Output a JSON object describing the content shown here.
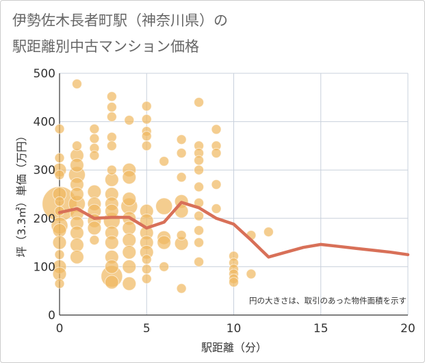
{
  "title_line1": "伊勢佐木長者町駅（神奈川県）の",
  "title_line2": "駅距離別中古マンション価格",
  "chart_data": {
    "type": "scatter",
    "title": "伊勢佐木長者町駅（神奈川県）の駅距離別中古マンション価格",
    "xlabel": "駅距離（分）",
    "ylabel": "坪（3.3㎡）単価（万円）",
    "xlim": [
      0,
      20
    ],
    "ylim": [
      0,
      500
    ],
    "xticks": [
      0,
      5,
      10,
      15,
      20
    ],
    "yticks": [
      0,
      100,
      200,
      300,
      400,
      500
    ],
    "note": "円の大きさは、取引のあった物件面積を示す",
    "bubble_color": "#f0b860",
    "line_color": "#d87058",
    "points": [
      {
        "x": 0,
        "y": 385,
        "s": 1
      },
      {
        "x": 0,
        "y": 325,
        "s": 1
      },
      {
        "x": 0,
        "y": 300,
        "s": 2
      },
      {
        "x": 0,
        "y": 290,
        "s": 1
      },
      {
        "x": 0,
        "y": 250,
        "s": 2
      },
      {
        "x": 0,
        "y": 235,
        "s": 1
      },
      {
        "x": 0,
        "y": 215,
        "s": 1
      },
      {
        "x": 0,
        "y": 185,
        "s": 3
      },
      {
        "x": 0,
        "y": 175,
        "s": 2
      },
      {
        "x": 0,
        "y": 150,
        "s": 2
      },
      {
        "x": 0,
        "y": 125,
        "s": 1
      },
      {
        "x": 0,
        "y": 100,
        "s": 2
      },
      {
        "x": 0,
        "y": 85,
        "s": 2
      },
      {
        "x": 0,
        "y": 65,
        "s": 1
      },
      {
        "x": 1,
        "y": 478,
        "s": 1
      },
      {
        "x": 1,
        "y": 350,
        "s": 1
      },
      {
        "x": 1,
        "y": 330,
        "s": 2
      },
      {
        "x": 1,
        "y": 310,
        "s": 2
      },
      {
        "x": 1,
        "y": 290,
        "s": 3
      },
      {
        "x": 1,
        "y": 270,
        "s": 2
      },
      {
        "x": 1,
        "y": 250,
        "s": 2
      },
      {
        "x": 1,
        "y": 230,
        "s": 3
      },
      {
        "x": 1,
        "y": 210,
        "s": 2
      },
      {
        "x": 1,
        "y": 190,
        "s": 2
      },
      {
        "x": 1,
        "y": 170,
        "s": 2
      },
      {
        "x": 1,
        "y": 145,
        "s": 2
      },
      {
        "x": 1,
        "y": 120,
        "s": 2
      },
      {
        "x": 0,
        "y": 230,
        "s": 13
      },
      {
        "x": 2,
        "y": 385,
        "s": 1
      },
      {
        "x": 2,
        "y": 365,
        "s": 1
      },
      {
        "x": 2,
        "y": 345,
        "s": 1
      },
      {
        "x": 2,
        "y": 330,
        "s": 1
      },
      {
        "x": 2,
        "y": 255,
        "s": 2
      },
      {
        "x": 2,
        "y": 230,
        "s": 2
      },
      {
        "x": 2,
        "y": 215,
        "s": 2
      },
      {
        "x": 2,
        "y": 195,
        "s": 2
      },
      {
        "x": 2,
        "y": 180,
        "s": 2
      },
      {
        "x": 2,
        "y": 155,
        "s": 1
      },
      {
        "x": 3,
        "y": 452,
        "s": 1
      },
      {
        "x": 3,
        "y": 430,
        "s": 1
      },
      {
        "x": 3,
        "y": 410,
        "s": 1
      },
      {
        "x": 3,
        "y": 368,
        "s": 1
      },
      {
        "x": 3,
        "y": 350,
        "s": 1
      },
      {
        "x": 3,
        "y": 300,
        "s": 1
      },
      {
        "x": 3,
        "y": 280,
        "s": 2
      },
      {
        "x": 3,
        "y": 250,
        "s": 2
      },
      {
        "x": 3,
        "y": 230,
        "s": 2
      },
      {
        "x": 3,
        "y": 215,
        "s": 2
      },
      {
        "x": 3,
        "y": 195,
        "s": 3
      },
      {
        "x": 3,
        "y": 170,
        "s": 2
      },
      {
        "x": 3,
        "y": 150,
        "s": 2
      },
      {
        "x": 3,
        "y": 120,
        "s": 2
      },
      {
        "x": 3,
        "y": 100,
        "s": 2
      },
      {
        "x": 3,
        "y": 80,
        "s": 5
      },
      {
        "x": 3,
        "y": 68,
        "s": 2
      },
      {
        "x": 4,
        "y": 403,
        "s": 1
      },
      {
        "x": 4,
        "y": 300,
        "s": 2
      },
      {
        "x": 4,
        "y": 285,
        "s": 2
      },
      {
        "x": 4,
        "y": 240,
        "s": 2
      },
      {
        "x": 4,
        "y": 225,
        "s": 3
      },
      {
        "x": 4,
        "y": 200,
        "s": 2
      },
      {
        "x": 4,
        "y": 180,
        "s": 2
      },
      {
        "x": 4,
        "y": 155,
        "s": 2
      },
      {
        "x": 4,
        "y": 130,
        "s": 2
      },
      {
        "x": 4,
        "y": 100,
        "s": 2
      },
      {
        "x": 4,
        "y": 65,
        "s": 2
      },
      {
        "x": 5,
        "y": 432,
        "s": 1
      },
      {
        "x": 5,
        "y": 405,
        "s": 1
      },
      {
        "x": 5,
        "y": 380,
        "s": 1
      },
      {
        "x": 5,
        "y": 370,
        "s": 1
      },
      {
        "x": 5,
        "y": 350,
        "s": 1
      },
      {
        "x": 5,
        "y": 215,
        "s": 2
      },
      {
        "x": 5,
        "y": 195,
        "s": 2
      },
      {
        "x": 5,
        "y": 170,
        "s": 2
      },
      {
        "x": 5,
        "y": 150,
        "s": 2
      },
      {
        "x": 5,
        "y": 130,
        "s": 2
      },
      {
        "x": 5,
        "y": 115,
        "s": 1
      },
      {
        "x": 5,
        "y": 95,
        "s": 1
      },
      {
        "x": 5,
        "y": 75,
        "s": 1
      },
      {
        "x": 6,
        "y": 318,
        "s": 1
      },
      {
        "x": 6,
        "y": 225,
        "s": 3
      },
      {
        "x": 6,
        "y": 160,
        "s": 2
      },
      {
        "x": 6,
        "y": 150,
        "s": 2
      },
      {
        "x": 6,
        "y": 100,
        "s": 1
      },
      {
        "x": 7,
        "y": 363,
        "s": 1
      },
      {
        "x": 7,
        "y": 335,
        "s": 1
      },
      {
        "x": 7,
        "y": 285,
        "s": 1
      },
      {
        "x": 7,
        "y": 235,
        "s": 2
      },
      {
        "x": 7,
        "y": 215,
        "s": 2
      },
      {
        "x": 7,
        "y": 165,
        "s": 1
      },
      {
        "x": 7,
        "y": 148,
        "s": 2
      },
      {
        "x": 7,
        "y": 55,
        "s": 1
      },
      {
        "x": 8,
        "y": 440,
        "s": 1
      },
      {
        "x": 8,
        "y": 350,
        "s": 1
      },
      {
        "x": 8,
        "y": 335,
        "s": 1
      },
      {
        "x": 8,
        "y": 320,
        "s": 1
      },
      {
        "x": 8,
        "y": 300,
        "s": 1
      },
      {
        "x": 8,
        "y": 265,
        "s": 1
      },
      {
        "x": 8,
        "y": 232,
        "s": 1
      },
      {
        "x": 8,
        "y": 205,
        "s": 1
      },
      {
        "x": 8,
        "y": 175,
        "s": 1
      },
      {
        "x": 8,
        "y": 150,
        "s": 1
      },
      {
        "x": 8,
        "y": 110,
        "s": 1
      },
      {
        "x": 9,
        "y": 384,
        "s": 1
      },
      {
        "x": 9,
        "y": 350,
        "s": 1
      },
      {
        "x": 9,
        "y": 335,
        "s": 1
      },
      {
        "x": 9,
        "y": 270,
        "s": 1
      },
      {
        "x": 9,
        "y": 220,
        "s": 1
      },
      {
        "x": 10,
        "y": 122,
        "s": 1
      },
      {
        "x": 10,
        "y": 108,
        "s": 1
      },
      {
        "x": 10,
        "y": 95,
        "s": 1
      },
      {
        "x": 10,
        "y": 85,
        "s": 1
      },
      {
        "x": 10,
        "y": 75,
        "s": 1
      },
      {
        "x": 10,
        "y": 68,
        "s": 1
      },
      {
        "x": 11,
        "y": 165,
        "s": 1
      },
      {
        "x": 11,
        "y": 85,
        "s": 1
      },
      {
        "x": 12,
        "y": 172,
        "s": 1
      }
    ],
    "trend": {
      "x": [
        0,
        1,
        2,
        3,
        4,
        5,
        6,
        7,
        8,
        9,
        10,
        11,
        12,
        13,
        14,
        15,
        16,
        17,
        18,
        19,
        20
      ],
      "y": [
        212,
        220,
        200,
        202,
        202,
        180,
        192,
        233,
        222,
        200,
        188,
        155,
        120,
        130,
        140,
        146,
        142,
        138,
        134,
        130,
        125
      ]
    }
  }
}
